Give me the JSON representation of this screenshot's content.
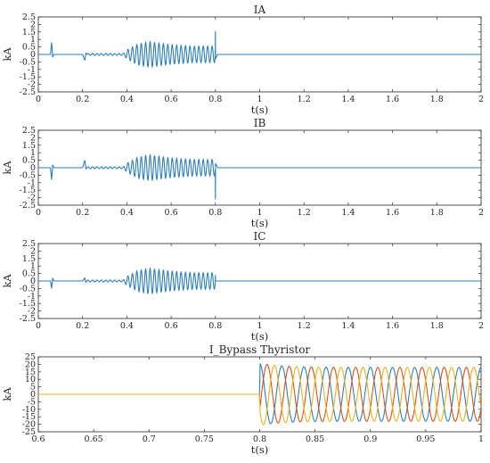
{
  "chart_data": [
    {
      "type": "line",
      "title": "IA",
      "xlabel": "t(s)",
      "ylabel": "kA",
      "xlim": [
        0,
        2
      ],
      "ylim": [
        -2.5,
        2.5
      ],
      "xticks": [
        "0",
        "0.2",
        "0.4",
        "0.6",
        "0.8",
        "1",
        "1.2",
        "1.4",
        "1.6",
        "1.8",
        "2"
      ],
      "yticks": [
        "2.5",
        "2",
        "1.5",
        "1",
        "0.5",
        "0",
        "-0.5",
        "-1",
        "-1.5",
        "-2",
        "-2.5"
      ],
      "grid": false,
      "series": [
        {
          "color": "#2e7fb8",
          "x": [
            0,
            0.055,
            0.06,
            0.065,
            0.07,
            0.2,
            0.21,
            0.215,
            0.22,
            0.38,
            0.4,
            0.45,
            0.5,
            0.55,
            0.6,
            0.65,
            0.7,
            0.75,
            0.8,
            0.8,
            0.81,
            2
          ],
          "y": [
            0,
            0,
            0.8,
            -0.2,
            0,
            0,
            -0.4,
            0.1,
            0,
            0,
            0.3,
            0.7,
            0.85,
            0.75,
            0.65,
            0.6,
            0.55,
            0.55,
            1.55,
            -0.3,
            0,
            0
          ],
          "note_oscillation": "sinusoidal envelope between t=0.4 and t=0.8"
        }
      ]
    },
    {
      "type": "line",
      "title": "IB",
      "xlabel": "t(s)",
      "ylabel": "kA",
      "xlim": [
        0,
        2
      ],
      "ylim": [
        -2.5,
        2.5
      ],
      "xticks": [
        "0",
        "0.2",
        "0.4",
        "0.6",
        "0.8",
        "1",
        "1.2",
        "1.4",
        "1.6",
        "1.8",
        "2"
      ],
      "yticks": [
        "2.5",
        "2",
        "1.5",
        "1",
        "0.5",
        "0",
        "-0.5",
        "-1",
        "-1.5",
        "-2",
        "-2.5"
      ],
      "grid": false,
      "series": [
        {
          "color": "#2e7fb8",
          "x": [
            0,
            0.055,
            0.06,
            0.065,
            0.07,
            0.2,
            0.21,
            0.215,
            0.22,
            0.38,
            0.4,
            0.45,
            0.5,
            0.55,
            0.6,
            0.65,
            0.7,
            0.75,
            0.8,
            0.8,
            0.81,
            2
          ],
          "y": [
            0,
            0,
            -0.8,
            0.2,
            0,
            0,
            0.5,
            -0.1,
            0,
            0,
            0.3,
            0.7,
            0.85,
            0.75,
            0.65,
            0.6,
            0.55,
            0.55,
            -2.1,
            0.3,
            0,
            0
          ]
        }
      ]
    },
    {
      "type": "line",
      "title": "IC",
      "xlabel": "t(s)",
      "ylabel": "kA",
      "xlim": [
        0,
        2
      ],
      "ylim": [
        -2.5,
        2.5
      ],
      "xticks": [
        "0",
        "0.2",
        "0.4",
        "0.6",
        "0.8",
        "1",
        "1.2",
        "1.4",
        "1.6",
        "1.8",
        "2"
      ],
      "yticks": [
        "2.5",
        "2",
        "1.5",
        "1",
        "0.5",
        "0",
        "-0.5",
        "-1",
        "-1.5",
        "-2",
        "-2.5"
      ],
      "grid": false,
      "series": [
        {
          "color": "#2e7fb8",
          "x": [
            0,
            0.055,
            0.06,
            0.065,
            0.07,
            0.2,
            0.21,
            0.215,
            0.22,
            0.38,
            0.4,
            0.45,
            0.5,
            0.55,
            0.6,
            0.65,
            0.7,
            0.75,
            0.8,
            0.8,
            0.81,
            2
          ],
          "y": [
            0,
            0,
            -0.5,
            0.2,
            0,
            0,
            0.2,
            -0.1,
            0,
            0,
            0.3,
            0.7,
            0.85,
            0.75,
            0.65,
            0.6,
            0.55,
            0.55,
            0.4,
            0,
            0,
            0
          ]
        }
      ]
    },
    {
      "type": "line",
      "title": "I_Bypass Thyristor",
      "xlabel": "t(s)",
      "ylabel": "kA",
      "xlim": [
        0.6,
        1
      ],
      "ylim": [
        -25,
        25
      ],
      "xticks": [
        "0.6",
        "0.65",
        "0.7",
        "0.75",
        "0.8",
        "0.85",
        "0.9",
        "0.95",
        "1"
      ],
      "yticks": [
        "25",
        "20",
        "15",
        "10",
        "5",
        "0",
        "-5",
        "-10",
        "-15",
        "-20",
        "-25"
      ],
      "grid": false,
      "series": [
        {
          "color": "#2e7fb8",
          "x": [
            0.6,
            0.8,
            0.81,
            1
          ],
          "y": [
            0,
            0,
            20,
            18
          ],
          "frequency_hz": 50,
          "phase_deg": 90
        },
        {
          "color": "#d95319",
          "x": [
            0.6,
            0.8,
            0.81,
            1
          ],
          "y": [
            0,
            0,
            -15,
            18
          ],
          "frequency_hz": 50,
          "phase_deg": -30
        },
        {
          "color": "#edb120",
          "x": [
            0.6,
            0.8,
            0.81,
            1
          ],
          "y": [
            0,
            0,
            -22,
            18
          ],
          "frequency_hz": 50,
          "phase_deg": 210
        }
      ]
    }
  ]
}
